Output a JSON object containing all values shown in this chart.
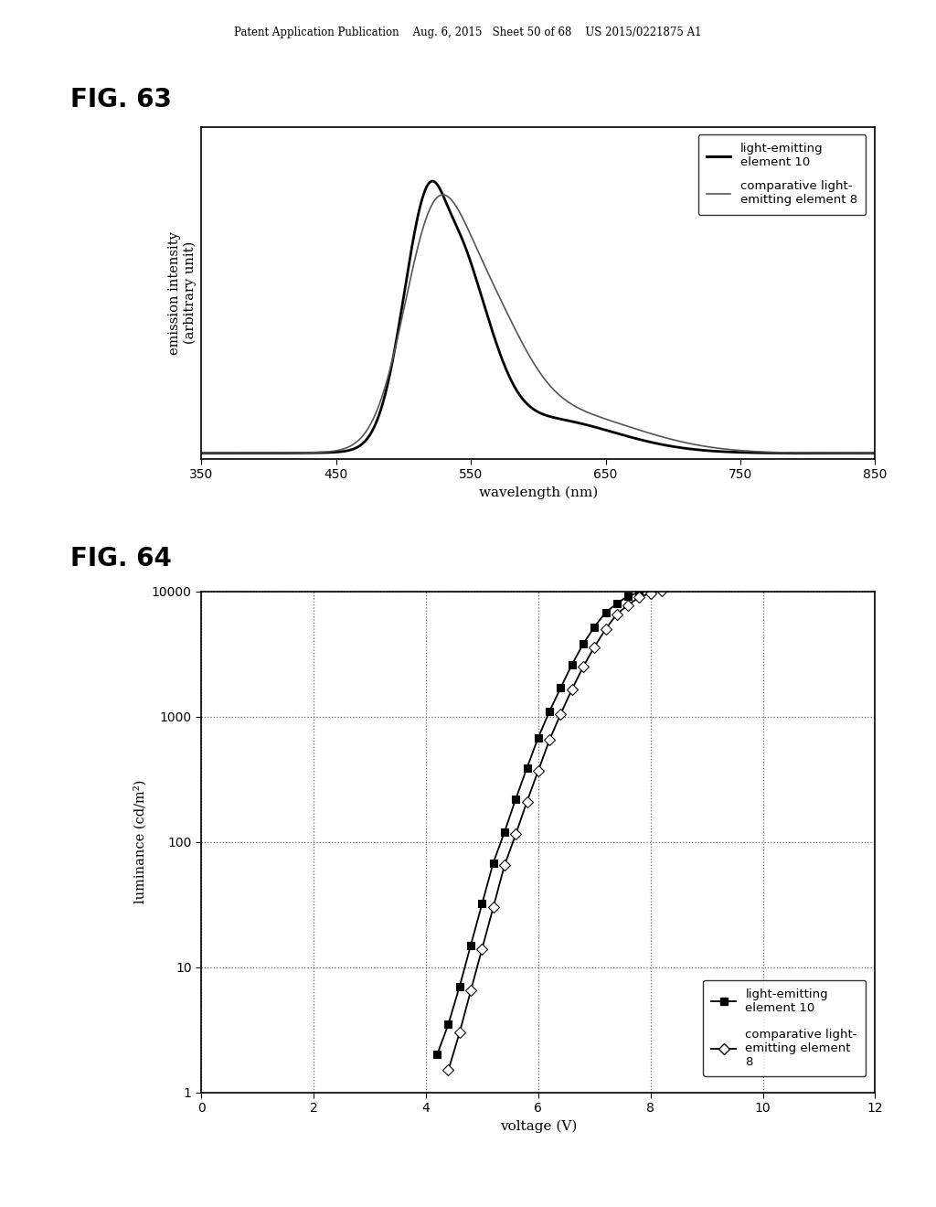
{
  "header_text": "Patent Application Publication    Aug. 6, 2015   Sheet 50 of 68    US 2015/0221875 A1",
  "fig63_title": "FIG. 63",
  "fig64_title": "FIG. 64",
  "fig63_xlabel": "wavelength (nm)",
  "fig63_ylabel": "emission intensity\n(arbitrary unit)",
  "fig63_xlim": [
    350,
    850
  ],
  "fig63_xticks": [
    350,
    450,
    550,
    650,
    750,
    850
  ],
  "fig64_xlabel": "voltage (V)",
  "fig64_ylabel": "luminance (cd/m²)",
  "fig64_xlim": [
    0,
    12
  ],
  "fig64_xticks": [
    0,
    2,
    4,
    6,
    8,
    10,
    12
  ],
  "fig64_ylim_log": [
    1,
    10000
  ],
  "fig64_yticks": [
    1,
    10,
    100,
    1000,
    10000
  ],
  "legend1_label1": "light-emitting\nelement 10",
  "legend1_label2": "comparative light-\nemitting element 8",
  "legend2_label1": "light-emitting\nelement 10",
  "legend2_label2": "comparative light-\nemitting element\n8",
  "background_color": "#ffffff"
}
